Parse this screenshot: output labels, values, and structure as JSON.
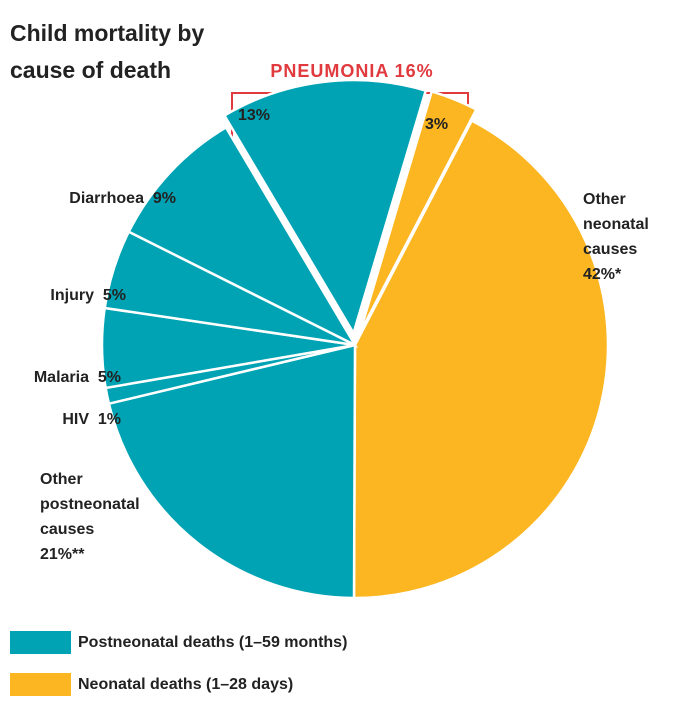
{
  "chart_data": {
    "type": "pie",
    "title": "Child mortality by cause of death",
    "annotation": "PNEUMONIA 16%",
    "categories": [
      "Other neonatal causes",
      "Other postneonatal causes",
      "HIV",
      "Malaria",
      "Injury",
      "Diarrhoea",
      null,
      null
    ],
    "values": [
      42,
      21,
      1,
      5,
      5,
      9,
      13,
      3
    ],
    "value_labels": [
      "42%*",
      "21%**",
      "1%",
      "5%",
      "5%",
      "9%",
      "13%",
      "3%"
    ],
    "colors": [
      "#fbb621",
      "#00a3b3",
      "#00a3b3",
      "#00a3b3",
      "#00a3b3",
      "#00a3b3",
      "#00a3b3",
      "#fbb621"
    ],
    "explode": [
      false,
      false,
      false,
      false,
      false,
      false,
      true,
      true
    ],
    "legend": [
      {
        "name": "Postneonatal deaths (1–59 months)",
        "color": "#00a3b3"
      },
      {
        "name": "Neonatal deaths (1–28 days)",
        "color": "#fbb621"
      }
    ]
  }
}
